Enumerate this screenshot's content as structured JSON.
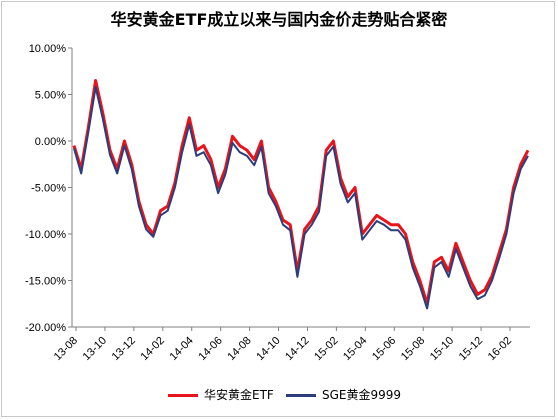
{
  "chart_data": {
    "type": "line",
    "title": "华安黄金ETF成立以来与国内金价走势贴合紧密",
    "xlabel": "",
    "ylabel": "",
    "ylim": [
      -0.2,
      0.1
    ],
    "yticks": [
      0.1,
      0.05,
      0.0,
      -0.05,
      -0.1,
      -0.15,
      -0.2
    ],
    "ytick_labels": [
      "10.00%",
      "5.00%",
      "0.00%",
      "-5.00%",
      "-10.00%",
      "-15.00%",
      "-20.00%"
    ],
    "xtick_labels": [
      "13-08",
      "13-10",
      "13-12",
      "14-02",
      "14-04",
      "14-06",
      "14-08",
      "14-10",
      "14-12",
      "15-02",
      "15-04",
      "15-06",
      "15-08",
      "15-10",
      "15-12",
      "16-02"
    ],
    "grid": false,
    "legend_position": "bottom",
    "x": [
      "2013-07",
      "2013-08",
      "2013-08",
      "2013-09",
      "2013-09",
      "2013-10",
      "2013-10",
      "2013-11",
      "2013-11",
      "2013-12",
      "2013-12",
      "2014-01",
      "2014-01",
      "2014-02",
      "2014-02",
      "2014-03",
      "2014-03",
      "2014-04",
      "2014-04",
      "2014-05",
      "2014-05",
      "2014-06",
      "2014-06",
      "2014-07",
      "2014-07",
      "2014-08",
      "2014-08",
      "2014-09",
      "2014-09",
      "2014-10",
      "2014-10",
      "2014-11",
      "2014-11",
      "2014-12",
      "2014-12",
      "2015-01",
      "2015-01",
      "2015-02",
      "2015-02",
      "2015-03",
      "2015-03",
      "2015-04",
      "2015-04",
      "2015-05",
      "2015-05",
      "2015-06",
      "2015-06",
      "2015-07",
      "2015-07",
      "2015-08",
      "2015-08",
      "2015-09",
      "2015-09",
      "2015-10",
      "2015-10",
      "2015-11",
      "2015-11",
      "2015-12",
      "2015-12",
      "2016-01",
      "2016-01",
      "2016-02",
      "2016-02",
      "2016-03"
    ],
    "series": [
      {
        "name": "华安黄金ETF",
        "color": "#e8141c",
        "values": [
          -0.005,
          -0.03,
          0.015,
          0.065,
          0.03,
          -0.01,
          -0.03,
          0.0,
          -0.025,
          -0.065,
          -0.09,
          -0.1,
          -0.075,
          -0.07,
          -0.045,
          -0.005,
          0.025,
          -0.01,
          -0.005,
          -0.02,
          -0.05,
          -0.03,
          0.005,
          -0.005,
          -0.01,
          -0.02,
          0.0,
          -0.05,
          -0.065,
          -0.085,
          -0.09,
          -0.14,
          -0.095,
          -0.085,
          -0.07,
          -0.01,
          0.0,
          -0.04,
          -0.06,
          -0.05,
          -0.1,
          -0.09,
          -0.08,
          -0.085,
          -0.09,
          -0.09,
          -0.1,
          -0.13,
          -0.15,
          -0.175,
          -0.13,
          -0.125,
          -0.14,
          -0.11,
          -0.13,
          -0.15,
          -0.165,
          -0.16,
          -0.145,
          -0.12,
          -0.095,
          -0.05,
          -0.025,
          -0.01
        ]
      },
      {
        "name": "SGE黄金9999",
        "color": "#2a3d7c",
        "values": [
          -0.008,
          -0.035,
          0.01,
          0.058,
          0.024,
          -0.015,
          -0.035,
          -0.005,
          -0.03,
          -0.07,
          -0.095,
          -0.103,
          -0.08,
          -0.075,
          -0.05,
          -0.012,
          0.018,
          -0.016,
          -0.012,
          -0.026,
          -0.056,
          -0.036,
          -0.002,
          -0.012,
          -0.016,
          -0.026,
          -0.006,
          -0.056,
          -0.07,
          -0.09,
          -0.096,
          -0.146,
          -0.1,
          -0.09,
          -0.076,
          -0.016,
          -0.006,
          -0.046,
          -0.066,
          -0.056,
          -0.106,
          -0.096,
          -0.086,
          -0.09,
          -0.096,
          -0.096,
          -0.106,
          -0.136,
          -0.156,
          -0.18,
          -0.136,
          -0.13,
          -0.146,
          -0.116,
          -0.136,
          -0.156,
          -0.17,
          -0.166,
          -0.15,
          -0.126,
          -0.1,
          -0.056,
          -0.03,
          -0.016
        ]
      }
    ]
  }
}
